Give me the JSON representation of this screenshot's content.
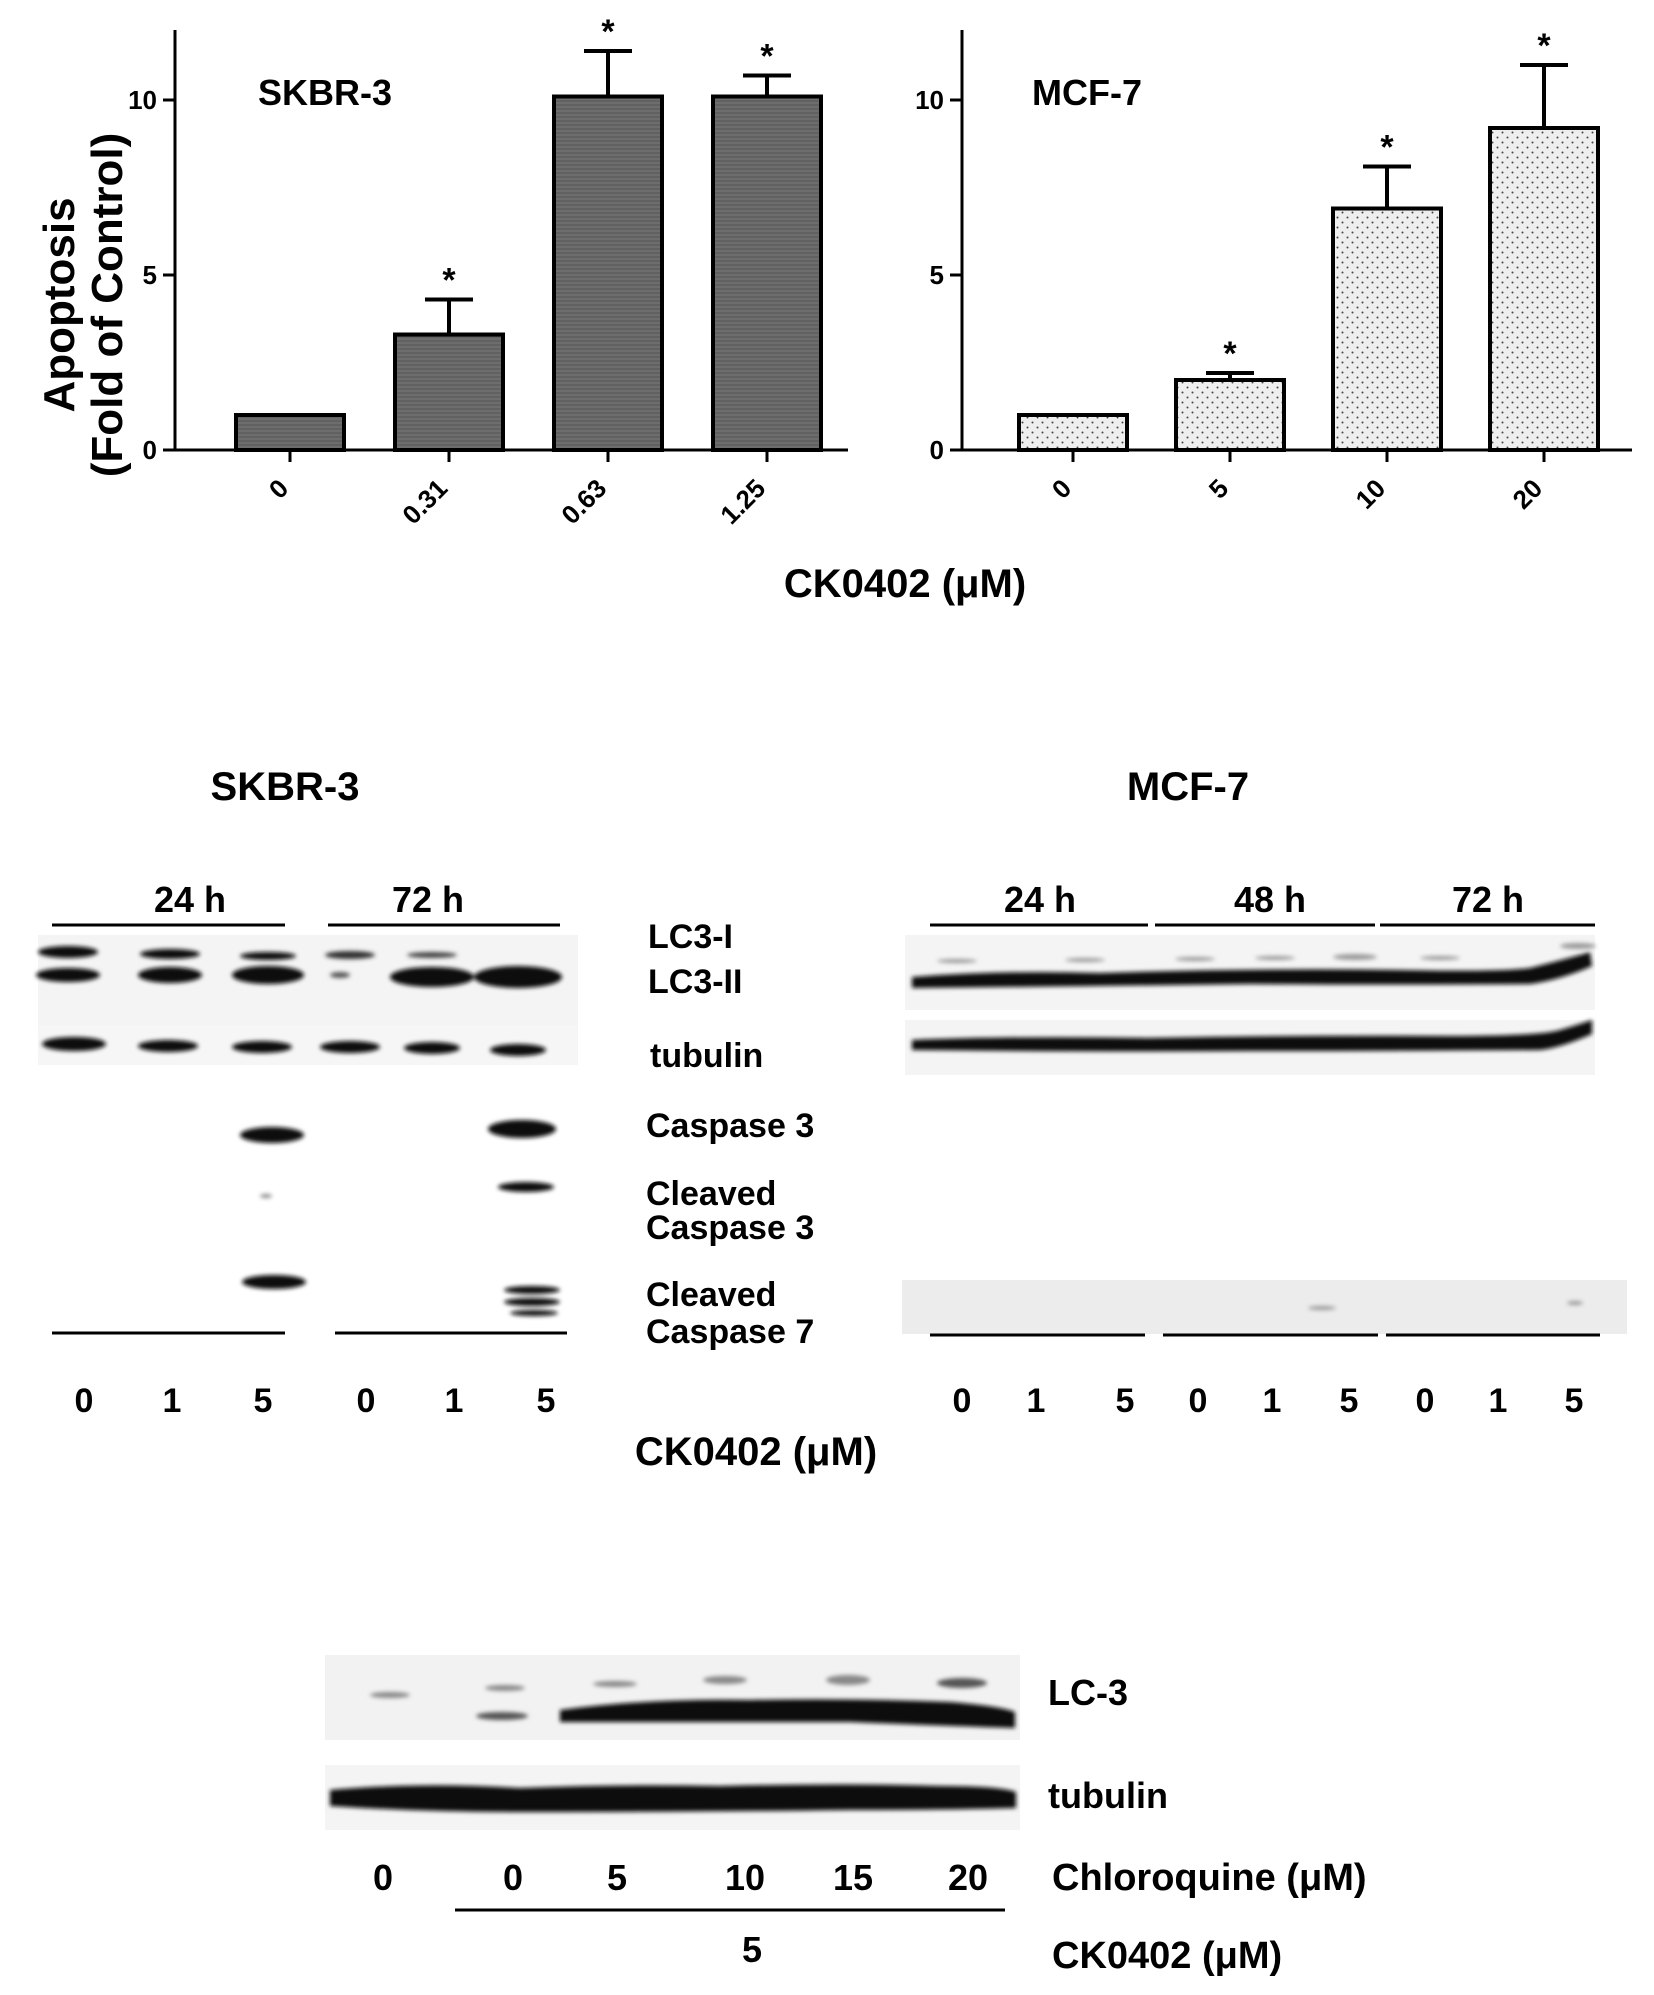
{
  "chart_data": [
    {
      "type": "bar",
      "panel": "top-left",
      "title": "SKBR-3",
      "ylabel": "Apoptosis\n(Fold of Control)",
      "categories": [
        "0",
        "0.31",
        "0.63",
        "1.25"
      ],
      "values": [
        1.0,
        3.3,
        10.1,
        10.1
      ],
      "errors": [
        0.0,
        1.0,
        1.3,
        0.6
      ],
      "significance": [
        "",
        "*",
        "*",
        "*"
      ],
      "ylim": [
        0,
        12
      ],
      "yticks": [
        "0",
        "5",
        "10"
      ],
      "fill": "#6a6a6a",
      "pattern": "horizontal-lines",
      "legend": "none"
    },
    {
      "type": "bar",
      "panel": "top-right",
      "title": "MCF-7",
      "categories": [
        "0",
        "5",
        "10",
        "20"
      ],
      "values": [
        1.0,
        2.0,
        6.9,
        9.2
      ],
      "errors": [
        0.0,
        0.2,
        1.2,
        1.8
      ],
      "significance": [
        "",
        "*",
        "*",
        "*"
      ],
      "ylim": [
        0,
        12
      ],
      "yticks": [
        "0",
        "5",
        "10"
      ],
      "fill": "#ebebeb",
      "pattern": "dots",
      "legend": "none"
    }
  ],
  "shared_xlabel": "CK0402 (μM)",
  "blots": {
    "skbr3": {
      "title": "SKBR-3",
      "time_groups": [
        "24 h",
        "72 h"
      ],
      "lanes": [
        "0",
        "1",
        "5",
        "0",
        "1",
        "5"
      ],
      "bands": [
        "LC3-I",
        "LC3-II",
        "tubulin",
        "Caspase 3",
        "Cleaved",
        "Caspase 3",
        "Cleaved",
        "Caspase 7"
      ]
    },
    "mcf7": {
      "title": "MCF-7",
      "time_groups": [
        "24 h",
        "48 h",
        "72 h"
      ],
      "lanes": [
        "0",
        "1",
        "5",
        "0",
        "1",
        "5",
        "0",
        "1",
        "5"
      ]
    },
    "middle_xlabel": "CK0402 (μM)",
    "chloroquine": {
      "bands": [
        "LC-3",
        "tubulin"
      ],
      "chloroquine_lanes": [
        "0",
        "0",
        "5",
        "10",
        "15",
        "20"
      ],
      "chloroquine_label": "Chloroquine (μM)",
      "ck_value": "5",
      "ck_label": "CK0402 (μM)"
    }
  },
  "colors": {
    "dark_bar": "#6a6a6a",
    "light_bar": "#ebebeb",
    "ink": "#000000"
  }
}
